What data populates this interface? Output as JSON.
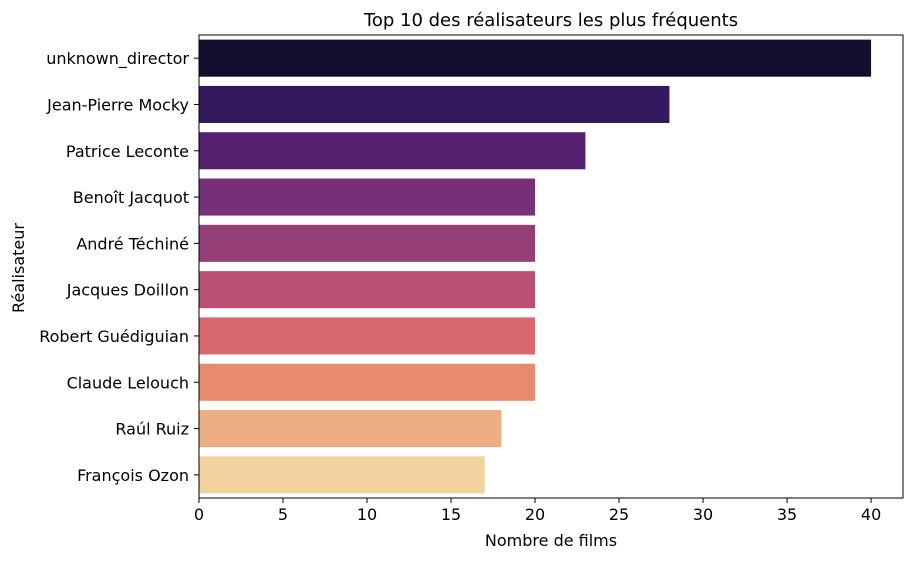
{
  "chart_data": {
    "type": "bar",
    "orientation": "horizontal",
    "title": "Top 10 des réalisateurs les plus fréquents",
    "xlabel": "Nombre de films",
    "ylabel": "Réalisateur",
    "xlim": [
      0,
      41.9
    ],
    "xticks": [
      0,
      5,
      10,
      15,
      20,
      25,
      30,
      35,
      40
    ],
    "grid": false,
    "legend": "none",
    "categories": [
      "unknown_director",
      "Jean-Pierre Mocky",
      "Patrice Leconte",
      "Benoît Jacquot",
      "André Téchiné",
      "Jacques Doillon",
      "Robert Guédiguian",
      "Claude Lelouch",
      "Raúl Ruiz",
      "François Ozon"
    ],
    "values": [
      40,
      28,
      23,
      20,
      20,
      20,
      20,
      20,
      18,
      17
    ],
    "colors": [
      "#140f2f",
      "#331a5e",
      "#55206f",
      "#763077",
      "#963f77",
      "#bb4f73",
      "#d8676f",
      "#e88a6d",
      "#edae83",
      "#f2d19f"
    ]
  }
}
